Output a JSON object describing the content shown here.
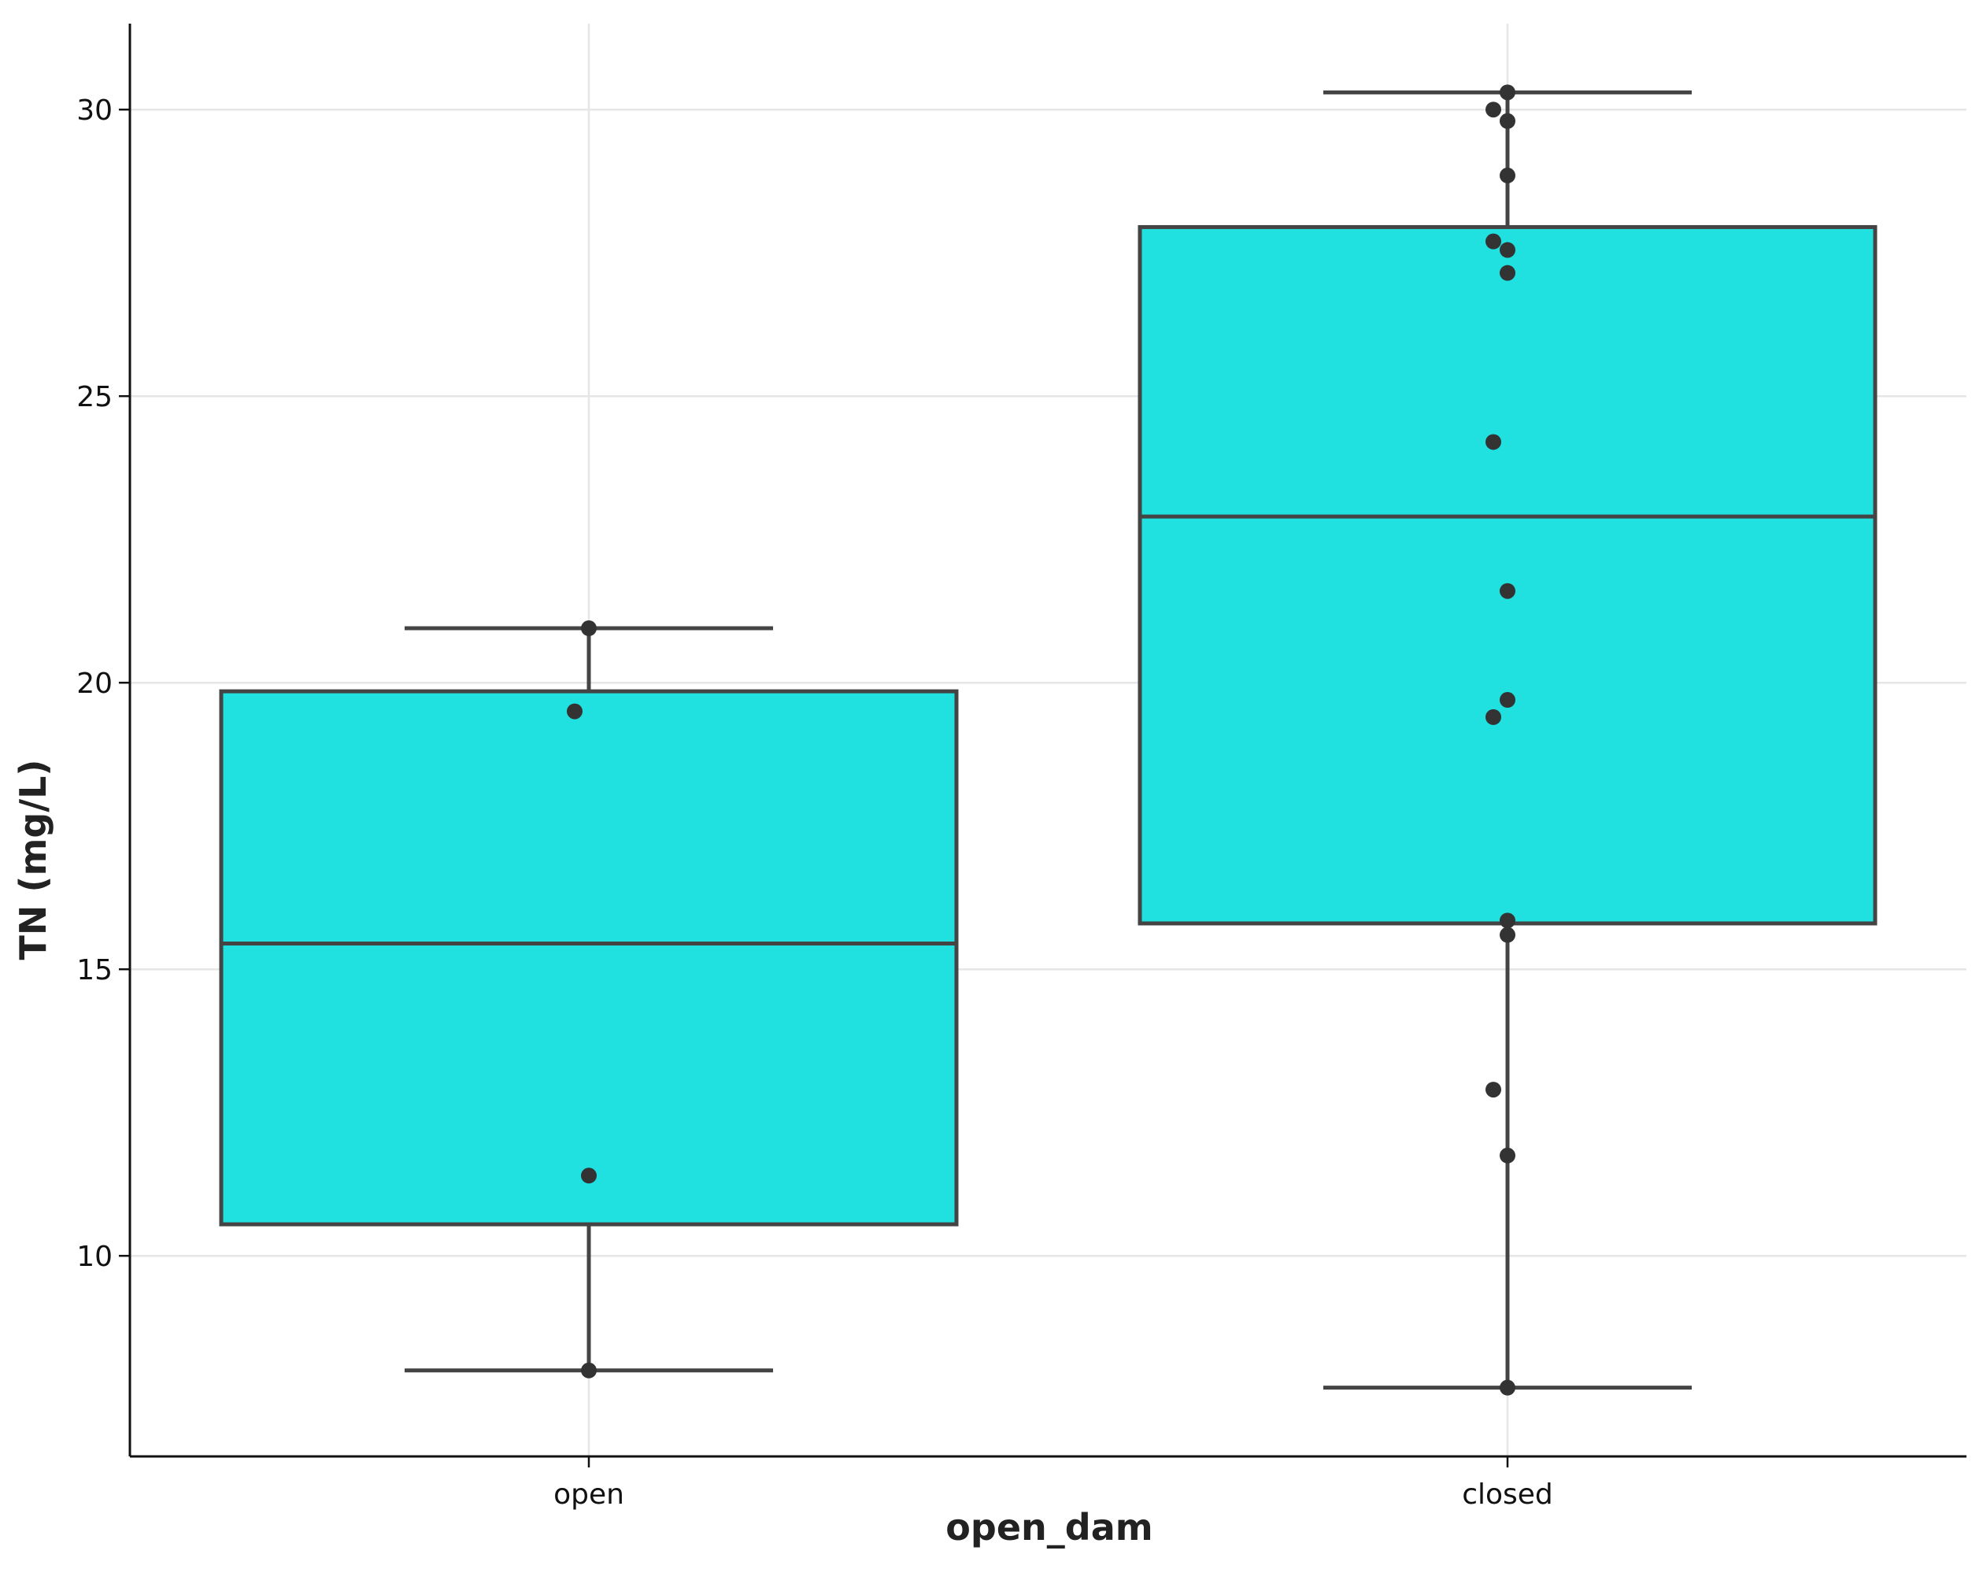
{
  "chart_data": {
    "type": "box",
    "title": "",
    "xlabel": "open_dam",
    "ylabel": "TN (mg/L)",
    "categories": [
      "open",
      "closed"
    ],
    "ylim": [
      6.5,
      31.5
    ],
    "yticks": [
      10,
      15,
      20,
      25,
      30
    ],
    "grid": true,
    "box_color": "#20e0e0",
    "line_color": "#444444",
    "boxes": [
      {
        "category": "open",
        "whisker_low": 8.0,
        "q1": 10.55,
        "median": 15.45,
        "q3": 19.85,
        "whisker_high": 20.95,
        "points": [
          20.95,
          19.5,
          11.4,
          8.0
        ]
      },
      {
        "category": "closed",
        "whisker_low": 7.7,
        "q1": 15.8,
        "median": 22.9,
        "q3": 27.95,
        "whisker_high": 30.3,
        "points": [
          30.3,
          30.0,
          29.8,
          28.85,
          27.7,
          27.55,
          27.15,
          24.2,
          21.6,
          19.7,
          19.4,
          15.85,
          15.6,
          12.9,
          11.75,
          7.7
        ]
      }
    ]
  }
}
